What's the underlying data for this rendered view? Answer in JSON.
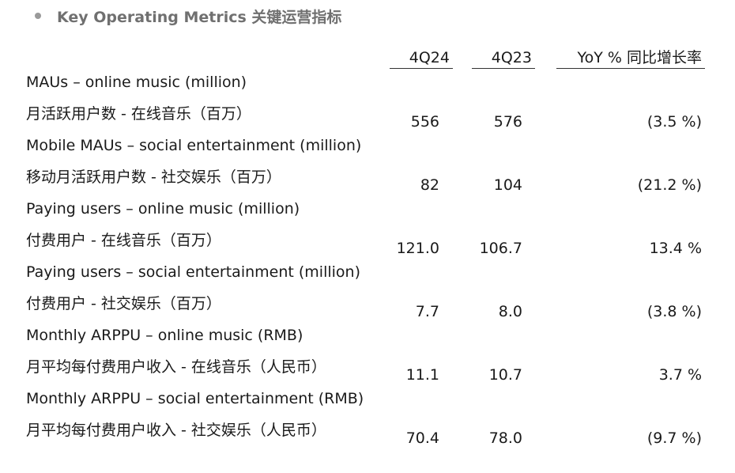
{
  "section": {
    "title": "Key Operating Metrics 关键运营指标"
  },
  "headers": {
    "q4_2024": "4Q24",
    "q4_2023": "4Q23",
    "yoy": "YoY % 同比增长率"
  },
  "rows": [
    {
      "label_en": "MAUs – online music (million)",
      "label_zh": "月活跃用户数 - 在线音乐（百万）",
      "q4_2024": "556",
      "q4_2023": "576",
      "yoy": "(3.5 %)"
    },
    {
      "label_en": "Mobile MAUs – social entertainment (million)",
      "label_zh": "移动月活跃用户数 - 社交娱乐（百万）",
      "q4_2024": "82",
      "q4_2023": "104",
      "yoy": "(21.2 %)"
    },
    {
      "label_en": "Paying users – online music (million)",
      "label_zh": "付费用户 - 在线音乐（百万）",
      "q4_2024": "121.0",
      "q4_2023": "106.7",
      "yoy": "13.4 %"
    },
    {
      "label_en": "Paying users – social entertainment (million)",
      "label_zh": "付费用户 - 社交娱乐（百万）",
      "q4_2024": "7.7",
      "q4_2023": "8.0",
      "yoy": "(3.8 %)"
    },
    {
      "label_en": "Monthly ARPPU – online music (RMB)",
      "label_zh": "月平均每付费用户收入 - 在线音乐（人民币）",
      "q4_2024": "11.1",
      "q4_2023": "10.7",
      "yoy": "3.7 %"
    },
    {
      "label_en": "Monthly ARPPU – social entertainment (RMB)",
      "label_zh": "月平均每付费用户收入 - 社交娱乐（人民币）",
      "q4_2024": "70.4",
      "q4_2023": "78.0",
      "yoy": "(9.7 %)"
    }
  ]
}
